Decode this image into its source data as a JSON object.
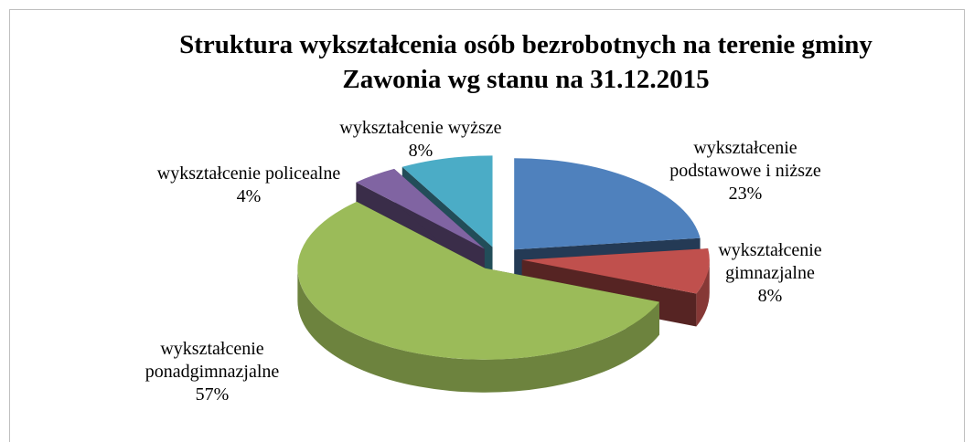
{
  "chart_data": {
    "type": "pie3d",
    "title": "Struktura wykształcenia osób bezrobotnych na terenie gminy Zawonia wg stanu na 31.12.2015",
    "categories": [
      "wykształcenie podstawowe i niższe",
      "wykształcenie gimnazjalne",
      "wykształcenie ponadgimnazjalne",
      "wykształcenie policealne",
      "wykształcenie wyższe"
    ],
    "values": [
      23,
      8,
      57,
      4,
      8
    ],
    "value_labels": [
      "23%",
      "8%",
      "57%",
      "4%",
      "8%"
    ],
    "colors": [
      "#4f81bd",
      "#c0504d",
      "#9bbb59",
      "#8064a2",
      "#4bacc6"
    ]
  }
}
